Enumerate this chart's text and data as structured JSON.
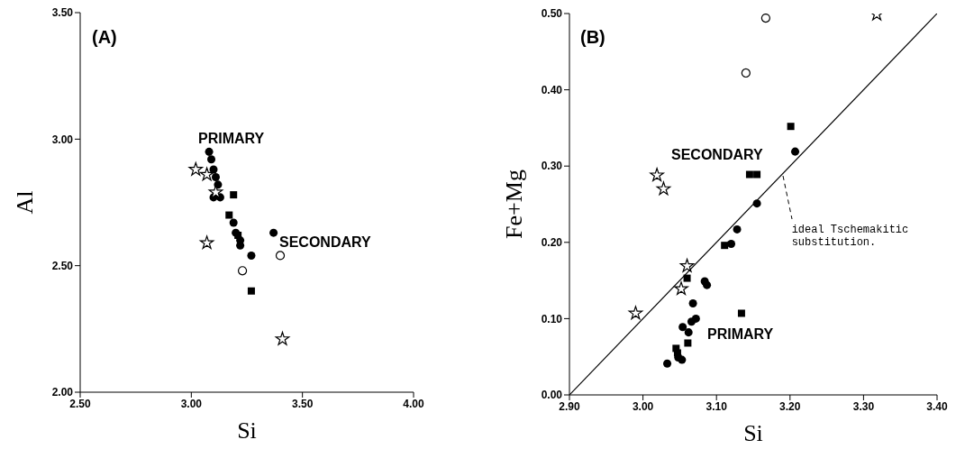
{
  "chart_data": [
    {
      "type": "scatter",
      "xlabel": "Si",
      "ylabel": "Al",
      "xlim": [
        2.5,
        4.0
      ],
      "xticks": [
        {
          "value": 2.5,
          "label": "2.50"
        },
        {
          "value": 3.0,
          "label": "3.00"
        },
        {
          "value": 3.5,
          "label": "3.50"
        },
        {
          "value": 4.0,
          "label": "4.00"
        }
      ],
      "ylim": [
        2.0,
        3.5
      ],
      "yticks": [
        {
          "value": 2.0,
          "label": "2.00"
        },
        {
          "value": 2.5,
          "label": "2.50"
        },
        {
          "value": 3.0,
          "label": "3.00"
        },
        {
          "value": 3.5,
          "label": "3.50"
        }
      ],
      "series": [
        {
          "marker": "circle",
          "color": "#000000",
          "x": [
            3.08,
            3.09,
            3.1,
            3.11,
            3.12,
            3.13,
            3.1,
            3.19,
            3.2,
            3.22,
            3.22,
            3.37,
            3.27
          ],
          "values": [
            2.95,
            2.92,
            2.88,
            2.85,
            2.82,
            2.77,
            2.77,
            2.67,
            2.63,
            2.6,
            2.58,
            2.63,
            2.54
          ]
        },
        {
          "marker": "square",
          "color": "#000000",
          "x": [
            3.17,
            3.21,
            3.19,
            3.27
          ],
          "values": [
            2.7,
            2.62,
            2.78,
            2.4
          ]
        },
        {
          "marker": "circle",
          "color": "#ffffff",
          "x": [
            3.4,
            3.23
          ],
          "values": [
            2.54,
            2.48
          ]
        },
        {
          "marker": "star",
          "color": "#ffffff",
          "x": [
            3.02,
            3.07,
            3.07,
            3.11,
            3.41
          ],
          "values": [
            2.88,
            2.86,
            2.59,
            2.79,
            2.21
          ]
        }
      ],
      "annotations": [
        "(A)",
        "PRIMARY",
        "SECONDARY"
      ]
    },
    {
      "type": "scatter",
      "xlabel": "Si",
      "ylabel": "Fe+Mg",
      "xlim": [
        2.9,
        3.4
      ],
      "xticks": [
        {
          "value": 2.9,
          "label": "2.90"
        },
        {
          "value": 3.0,
          "label": "3.00"
        },
        {
          "value": 3.1,
          "label": "3.10"
        },
        {
          "value": 3.2,
          "label": "3.20"
        },
        {
          "value": 3.3,
          "label": "3.30"
        },
        {
          "value": 3.4,
          "label": "3.40"
        }
      ],
      "ylim": [
        0,
        0.5
      ],
      "yticks": [
        {
          "value": 0,
          "label": "0.00"
        },
        {
          "value": 0.1,
          "label": "0.10"
        },
        {
          "value": 0.2,
          "label": "0.20"
        },
        {
          "value": 0.3,
          "label": "0.30"
        },
        {
          "value": 0.4,
          "label": "0.40"
        },
        {
          "value": 0.5,
          "label": "0.50"
        }
      ],
      "series": [
        {
          "marker": "circle",
          "color": "#000000",
          "x": [
            3.207,
            3.155,
            3.128,
            3.12,
            3.084,
            3.087,
            3.068,
            3.072,
            3.066,
            3.054,
            3.062,
            3.033,
            3.053,
            3.048
          ],
          "values": [
            0.319,
            0.251,
            0.217,
            0.198,
            0.149,
            0.144,
            0.12,
            0.1,
            0.096,
            0.089,
            0.082,
            0.041,
            0.046,
            0.049
          ]
        },
        {
          "marker": "square",
          "color": "#000000",
          "x": [
            3.201,
            3.145,
            3.155,
            3.06,
            3.111,
            3.134,
            3.045,
            3.047,
            3.061
          ],
          "values": [
            0.352,
            0.289,
            0.289,
            0.153,
            0.196,
            0.107,
            0.061,
            0.055,
            0.068
          ]
        },
        {
          "marker": "circle",
          "color": "#ffffff",
          "x": [
            3.167,
            3.14
          ],
          "values": [
            0.494,
            0.422
          ]
        },
        {
          "marker": "star",
          "color": "#ffffff",
          "x": [
            2.99,
            3.052,
            3.06,
            3.019,
            3.028,
            3.318
          ],
          "values": [
            0.107,
            0.139,
            0.169,
            0.288,
            0.27,
            0.499
          ]
        },
        {
          "type": "line",
          "marker": "none",
          "color": "#000000",
          "x": [
            2.9,
            3.4
          ],
          "values": [
            0.0,
            0.5
          ]
        }
      ],
      "annotations": [
        "(B)",
        "SECONDARY",
        "PRIMARY",
        {
          "text": "ideal Tschemakitic substitution.",
          "x": 3.19,
          "y": 0.29
        }
      ]
    }
  ]
}
